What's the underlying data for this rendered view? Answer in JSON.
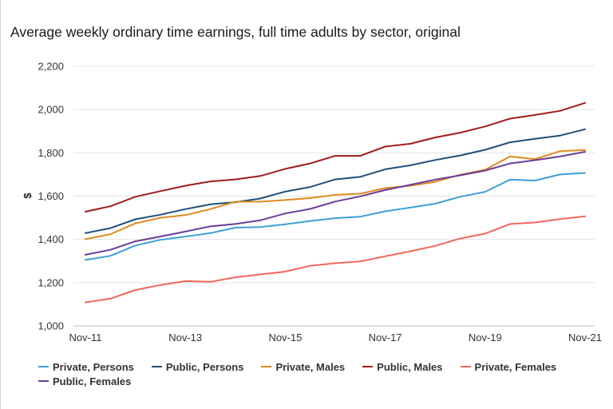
{
  "chart_data": {
    "type": "line",
    "title": "Average weekly ordinary time earnings, full time adults by sector, original",
    "xlabel": "",
    "ylabel": "$",
    "ylim": [
      1000,
      2200
    ],
    "yticks": [
      "1,000",
      "1,200",
      "1,400",
      "1,600",
      "1,800",
      "2,000",
      "2,200"
    ],
    "ytick_values": [
      1000,
      1200,
      1400,
      1600,
      1800,
      2000,
      2200
    ],
    "xtick_labels": [
      "Nov-11",
      "Nov-13",
      "Nov-15",
      "Nov-17",
      "Nov-19",
      "Nov-21"
    ],
    "x": [
      "Nov-11",
      "May-12",
      "Nov-12",
      "May-13",
      "Nov-13",
      "May-14",
      "Nov-14",
      "May-15",
      "Nov-15",
      "May-16",
      "Nov-16",
      "May-17",
      "Nov-17",
      "May-18",
      "Nov-18",
      "May-19",
      "Nov-19",
      "May-20",
      "Nov-20",
      "May-21",
      "Nov-21"
    ],
    "grid": true,
    "legend_position": "bottom",
    "series": [
      {
        "name": "Private, Persons",
        "color": "#3d9fd8",
        "values": [
          1305,
          1324,
          1372,
          1398,
          1413,
          1429,
          1454,
          1457,
          1470,
          1485,
          1498,
          1505,
          1530,
          1547,
          1565,
          1597,
          1620,
          1676,
          1672,
          1700,
          1707
        ]
      },
      {
        "name": "Public, Persons",
        "color": "#1f4e79",
        "values": [
          1429,
          1452,
          1493,
          1514,
          1540,
          1562,
          1572,
          1589,
          1621,
          1642,
          1677,
          1689,
          1724,
          1742,
          1767,
          1788,
          1814,
          1849,
          1865,
          1880,
          1909
        ]
      },
      {
        "name": "Private, Males",
        "color": "#e08a1e",
        "values": [
          1401,
          1424,
          1474,
          1500,
          1512,
          1540,
          1574,
          1574,
          1582,
          1591,
          1606,
          1611,
          1637,
          1648,
          1666,
          1699,
          1722,
          1783,
          1771,
          1808,
          1813
        ]
      },
      {
        "name": "Public, Males",
        "color": "#a01c1c",
        "values": [
          1528,
          1553,
          1597,
          1623,
          1648,
          1668,
          1677,
          1693,
          1726,
          1751,
          1786,
          1786,
          1829,
          1842,
          1871,
          1893,
          1922,
          1958,
          1975,
          1994,
          2031
        ]
      },
      {
        "name": "Private, Females",
        "color": "#f2665a",
        "values": [
          1109,
          1126,
          1166,
          1189,
          1207,
          1204,
          1225,
          1238,
          1251,
          1278,
          1290,
          1298,
          1322,
          1345,
          1370,
          1404,
          1427,
          1471,
          1478,
          1494,
          1507
        ]
      },
      {
        "name": "Public, Females",
        "color": "#6a3d9a",
        "values": [
          1329,
          1352,
          1391,
          1413,
          1436,
          1460,
          1471,
          1488,
          1520,
          1541,
          1575,
          1599,
          1628,
          1652,
          1676,
          1696,
          1718,
          1751,
          1766,
          1783,
          1805
        ]
      }
    ]
  }
}
